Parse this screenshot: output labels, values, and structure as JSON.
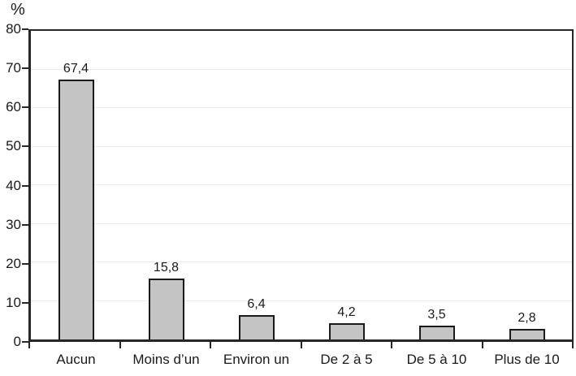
{
  "chart_data": {
    "type": "bar",
    "title": "",
    "xlabel": "",
    "ylabel": "%",
    "ylim": [
      0,
      80
    ],
    "yticks": [
      0,
      10,
      20,
      30,
      40,
      50,
      60,
      70,
      80
    ],
    "grid": true,
    "legend": false,
    "categories": [
      "Aucun",
      "Moins d’un",
      "Environ un",
      "De 2 à 5",
      "De 5 à 10",
      "Plus de 10"
    ],
    "values": [
      67.4,
      15.8,
      6.4,
      4.2,
      3.5,
      2.8
    ],
    "value_labels": [
      "67,4",
      "15,8",
      "6,4",
      "4,2",
      "3,5",
      "2,8"
    ],
    "colors": {
      "bar_fill": "#c4c4c4",
      "bar_border": "#1a1a1a",
      "axis": "#262626",
      "gridline": "#ececec",
      "text": "#1a1a1a"
    }
  }
}
